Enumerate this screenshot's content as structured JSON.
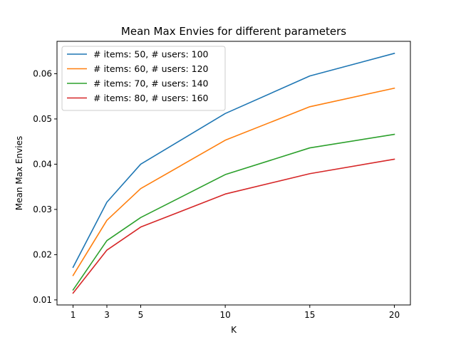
{
  "chart_data": {
    "type": "line",
    "title": "Mean Max Envies for different parameters",
    "xlabel": "K",
    "ylabel": "Mean Max Envies",
    "x": [
      1,
      3,
      5,
      10,
      15,
      20
    ],
    "xticks": [
      1,
      3,
      5,
      10,
      15,
      20
    ],
    "yticks": [
      0.01,
      0.02,
      0.03,
      0.04,
      0.05,
      0.06
    ],
    "ytick_labels": [
      "0.01",
      "0.02",
      "0.03",
      "0.04",
      "0.05",
      "0.06"
    ],
    "xlim": [
      0.05,
      20.95
    ],
    "ylim": [
      0.00888,
      0.06716
    ],
    "grid": false,
    "legend_position": "upper-left",
    "series": [
      {
        "name": "# items: 50, # users: 100",
        "color": "#1f77b4",
        "values": [
          0.0172,
          0.0316,
          0.04,
          0.0512,
          0.0595,
          0.0645
        ]
      },
      {
        "name": "# items: 60, # users: 120",
        "color": "#ff7f0e",
        "values": [
          0.0154,
          0.0276,
          0.0346,
          0.0453,
          0.0527,
          0.0568
        ]
      },
      {
        "name": "# items: 70, # users: 140",
        "color": "#2ca02c",
        "values": [
          0.0122,
          0.0231,
          0.0282,
          0.0377,
          0.0436,
          0.0466
        ]
      },
      {
        "name": "# items: 80, # users: 160",
        "color": "#d62728",
        "values": [
          0.0115,
          0.021,
          0.0261,
          0.0334,
          0.0379,
          0.0411
        ]
      }
    ]
  }
}
